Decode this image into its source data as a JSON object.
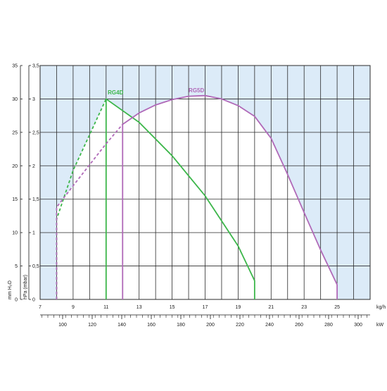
{
  "chart_data": {
    "type": "line",
    "colors": {
      "plot_background": "#dcebf8",
      "grid": "#2a2a2a",
      "RG4D": "#3cb64a",
      "RG5D": "#b069b8"
    },
    "axes": {
      "x_kg": {
        "unit": "kg/h",
        "range": [
          7,
          27
        ],
        "ticks": [
          7,
          9,
          11,
          13,
          15,
          17,
          19,
          21,
          23,
          25
        ],
        "tick_labels": [
          "7",
          "9",
          "11",
          "13",
          "15",
          "17",
          "19",
          "21",
          "23",
          "25"
        ]
      },
      "x_kw": {
        "unit": "kW",
        "ticks": [
          100,
          120,
          140,
          160,
          180,
          200,
          220,
          240,
          260,
          280,
          300
        ],
        "tick_labels": [
          "100",
          "120",
          "140",
          "160",
          "180",
          "200",
          "220",
          "240",
          "260",
          "280",
          "300"
        ]
      },
      "y_mbar": {
        "unit_text": "hPa (mbar)",
        "range": [
          0,
          3.5
        ],
        "ticks": [
          0,
          0.5,
          1,
          1.5,
          2,
          2.5,
          3,
          3.5
        ],
        "tick_labels": [
          "0",
          "0,5",
          "1",
          "1,5",
          "2",
          "2,5",
          "3",
          "3,5"
        ]
      },
      "y_mmh2o": {
        "unit_text": "mm H₂O",
        "ticks": [
          0,
          5,
          10,
          15,
          20,
          25,
          30,
          35
        ],
        "tick_labels": [
          "0",
          "5",
          "10",
          "15",
          "20",
          "25",
          "30",
          "35"
        ]
      }
    },
    "grid": true,
    "series": [
      {
        "name": "RG4D",
        "label_at": [
          11.1,
          3.07
        ],
        "dashed": [
          [
            8.0,
            0
          ],
          [
            8.0,
            1.2
          ],
          [
            9.0,
            1.93
          ],
          [
            11.0,
            3.0
          ]
        ],
        "solid": [
          [
            11.0,
            0
          ],
          [
            11.0,
            3.0
          ],
          [
            13.0,
            2.65
          ],
          [
            15.0,
            2.15
          ],
          [
            17.0,
            1.55
          ],
          [
            19.0,
            0.8
          ],
          [
            20.0,
            0.28
          ],
          [
            20.0,
            0
          ]
        ],
        "vertical_markers": [
          8.0,
          9.0,
          11.0
        ]
      },
      {
        "name": "RG5D",
        "label_at": [
          16.0,
          3.1
        ],
        "dashed": [
          [
            8.0,
            0
          ],
          [
            8.0,
            1.38
          ],
          [
            9.0,
            1.7
          ],
          [
            11.0,
            2.33
          ],
          [
            12.0,
            2.62
          ]
        ],
        "solid": [
          [
            12.0,
            0
          ],
          [
            12.0,
            2.62
          ],
          [
            13.0,
            2.79
          ],
          [
            14.0,
            2.91
          ],
          [
            15.0,
            2.99
          ],
          [
            16.0,
            3.04
          ],
          [
            17.0,
            3.05
          ],
          [
            18.0,
            3.0
          ],
          [
            19.0,
            2.9
          ],
          [
            20.0,
            2.74
          ],
          [
            21.0,
            2.41
          ],
          [
            22.0,
            1.87
          ],
          [
            23.0,
            1.3
          ],
          [
            24.0,
            0.74
          ],
          [
            25.0,
            0.22
          ],
          [
            25.0,
            0
          ]
        ],
        "vertical_markers": [
          8.0,
          12.0
        ]
      }
    ]
  }
}
